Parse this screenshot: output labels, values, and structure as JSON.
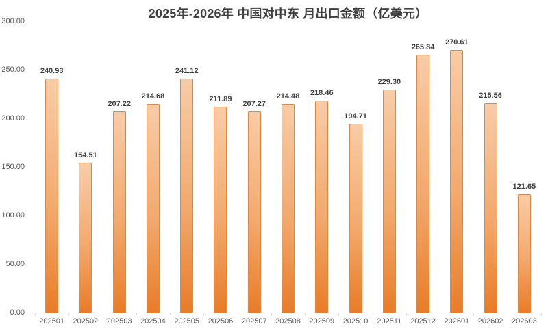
{
  "chart_data": {
    "type": "bar",
    "title": "2025年-2026年 中国对中东 月出口金额（亿美元）",
    "categories": [
      "202501",
      "202502",
      "202503",
      "202504",
      "202505",
      "202506",
      "202507",
      "202508",
      "202509",
      "202510",
      "202511",
      "202512",
      "202601",
      "202602",
      "202603"
    ],
    "values": [
      240.93,
      154.51,
      207.22,
      214.68,
      241.12,
      211.89,
      207.27,
      214.48,
      218.46,
      194.71,
      229.3,
      265.84,
      270.61,
      215.56,
      121.65
    ],
    "xlabel": "",
    "ylabel": "",
    "ylim": [
      0,
      300
    ],
    "ytick_step": 50,
    "ytick_labels": [
      "0.00",
      "50.00",
      "100.00",
      "150.00",
      "200.00",
      "250.00",
      "300.00"
    ],
    "grid": false,
    "legend_position": "none",
    "data_label_decimals": 2,
    "colors": {
      "bar_fill_top": "#f8cca7",
      "bar_fill_bottom": "#e87c28",
      "bar_border": "#e2853d",
      "axis_line": "#d6d6d6",
      "title_text": "#3f3f3f",
      "data_label_text": "#404040",
      "axis_tick_text": "#595959",
      "background": "#ffffff"
    }
  }
}
